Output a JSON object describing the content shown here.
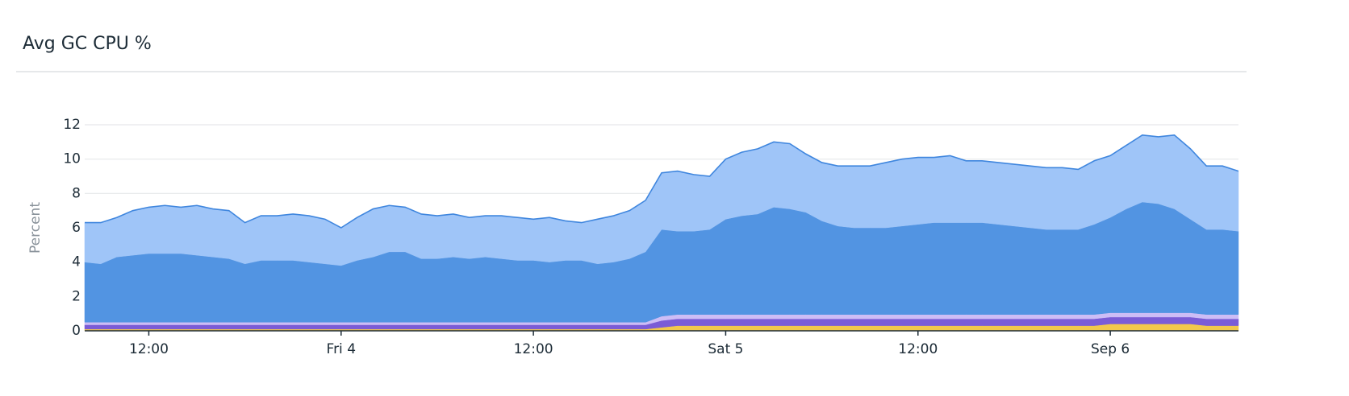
{
  "chart_data": {
    "type": "stacked_area",
    "title": "Avg GC CPU %",
    "y_label": "Percent",
    "x": [
      0,
      1,
      2,
      3,
      4,
      5,
      6,
      7,
      8,
      9,
      10,
      11,
      12,
      13,
      14,
      15,
      16,
      17,
      18,
      19,
      20,
      21,
      22,
      23,
      24,
      25,
      26,
      27,
      28,
      29,
      30,
      31,
      32,
      33,
      34,
      35,
      36,
      37,
      38,
      39,
      40,
      41,
      42,
      43,
      44,
      45,
      46,
      47,
      48,
      49,
      50,
      51,
      52,
      53,
      54,
      55,
      56,
      57,
      58,
      59,
      60,
      61,
      62,
      63,
      64,
      65,
      66,
      67,
      68,
      69,
      70,
      71,
      72
    ],
    "xlim": [
      0,
      72
    ],
    "xticks": [
      {
        "value": 4,
        "label": "12:00"
      },
      {
        "value": 16,
        "label": "Fri 4"
      },
      {
        "value": 28,
        "label": "12:00"
      },
      {
        "value": 40,
        "label": "Sat 5"
      },
      {
        "value": 52,
        "label": "12:00"
      },
      {
        "value": 64,
        "label": "Sep 6"
      }
    ],
    "ylim": [
      0,
      12
    ],
    "yticks": [
      0,
      2,
      4,
      6,
      8,
      10,
      12
    ],
    "grid": true,
    "series": [
      {
        "color": "#f2c84b",
        "values": [
          0.1,
          0.1,
          0.1,
          0.1,
          0.1,
          0.1,
          0.1,
          0.1,
          0.1,
          0.1,
          0.1,
          0.1,
          0.1,
          0.1,
          0.1,
          0.1,
          0.1,
          0.1,
          0.1,
          0.1,
          0.1,
          0.1,
          0.1,
          0.1,
          0.1,
          0.1,
          0.1,
          0.1,
          0.1,
          0.1,
          0.1,
          0.1,
          0.1,
          0.1,
          0.1,
          0.1,
          0.2,
          0.3,
          0.3,
          0.3,
          0.3,
          0.3,
          0.3,
          0.3,
          0.3,
          0.3,
          0.3,
          0.3,
          0.3,
          0.3,
          0.3,
          0.3,
          0.3,
          0.3,
          0.3,
          0.3,
          0.3,
          0.3,
          0.3,
          0.3,
          0.3,
          0.3,
          0.3,
          0.3,
          0.4,
          0.4,
          0.4,
          0.4,
          0.4,
          0.4,
          0.3,
          0.3,
          0.3
        ]
      },
      {
        "color": "#7b5cd6",
        "values": [
          0.25,
          0.25,
          0.25,
          0.25,
          0.25,
          0.25,
          0.25,
          0.25,
          0.25,
          0.25,
          0.25,
          0.25,
          0.25,
          0.25,
          0.25,
          0.25,
          0.25,
          0.25,
          0.25,
          0.25,
          0.25,
          0.25,
          0.25,
          0.25,
          0.25,
          0.25,
          0.25,
          0.25,
          0.25,
          0.25,
          0.25,
          0.25,
          0.25,
          0.25,
          0.25,
          0.25,
          0.4,
          0.4,
          0.4,
          0.4,
          0.4,
          0.4,
          0.4,
          0.4,
          0.4,
          0.4,
          0.4,
          0.4,
          0.4,
          0.4,
          0.4,
          0.4,
          0.4,
          0.4,
          0.4,
          0.4,
          0.4,
          0.4,
          0.4,
          0.4,
          0.4,
          0.4,
          0.4,
          0.4,
          0.4,
          0.4,
          0.4,
          0.4,
          0.4,
          0.4,
          0.4,
          0.4,
          0.4
        ]
      },
      {
        "color": "#cdbdf6",
        "values": [
          0.15,
          0.15,
          0.15,
          0.15,
          0.15,
          0.15,
          0.15,
          0.15,
          0.15,
          0.15,
          0.15,
          0.15,
          0.15,
          0.15,
          0.15,
          0.15,
          0.15,
          0.15,
          0.15,
          0.15,
          0.15,
          0.15,
          0.15,
          0.15,
          0.15,
          0.15,
          0.15,
          0.15,
          0.15,
          0.15,
          0.15,
          0.15,
          0.15,
          0.15,
          0.15,
          0.15,
          0.25,
          0.25,
          0.25,
          0.25,
          0.25,
          0.25,
          0.25,
          0.25,
          0.25,
          0.25,
          0.25,
          0.25,
          0.25,
          0.25,
          0.25,
          0.25,
          0.25,
          0.25,
          0.25,
          0.25,
          0.25,
          0.25,
          0.25,
          0.25,
          0.25,
          0.25,
          0.25,
          0.25,
          0.25,
          0.25,
          0.25,
          0.25,
          0.25,
          0.25,
          0.25,
          0.25,
          0.25
        ]
      },
      {
        "color": "#5294e2",
        "values": [
          3.5,
          3.4,
          3.8,
          3.9,
          4.0,
          4.0,
          4.0,
          3.9,
          3.8,
          3.7,
          3.4,
          3.6,
          3.6,
          3.6,
          3.5,
          3.4,
          3.3,
          3.6,
          3.8,
          4.1,
          4.1,
          3.7,
          3.7,
          3.8,
          3.7,
          3.8,
          3.7,
          3.6,
          3.6,
          3.5,
          3.6,
          3.6,
          3.4,
          3.5,
          3.7,
          4.1,
          5.05,
          4.85,
          4.85,
          4.95,
          5.55,
          5.75,
          5.85,
          6.25,
          6.15,
          5.95,
          5.45,
          5.15,
          5.05,
          5.05,
          5.05,
          5.15,
          5.25,
          5.35,
          5.35,
          5.35,
          5.35,
          5.25,
          5.15,
          5.05,
          4.95,
          4.95,
          4.95,
          5.25,
          5.55,
          6.05,
          6.45,
          6.35,
          6.05,
          5.45,
          4.95,
          4.95,
          4.85
        ]
      },
      {
        "color": "#9fc5f8",
        "values": [
          2.3,
          2.4,
          2.3,
          2.6,
          2.7,
          2.8,
          2.7,
          2.9,
          2.8,
          2.8,
          2.4,
          2.6,
          2.6,
          2.7,
          2.7,
          2.6,
          2.2,
          2.5,
          2.8,
          2.7,
          2.6,
          2.6,
          2.5,
          2.5,
          2.4,
          2.4,
          2.5,
          2.5,
          2.4,
          2.6,
          2.3,
          2.2,
          2.6,
          2.7,
          2.8,
          3.0,
          3.3,
          3.5,
          3.3,
          3.1,
          3.5,
          3.7,
          3.8,
          3.8,
          3.8,
          3.4,
          3.4,
          3.5,
          3.6,
          3.6,
          3.8,
          3.9,
          3.9,
          3.8,
          3.9,
          3.6,
          3.6,
          3.6,
          3.6,
          3.6,
          3.6,
          3.6,
          3.5,
          3.7,
          3.6,
          3.7,
          3.9,
          3.9,
          4.3,
          4.1,
          3.7,
          3.7,
          3.5
        ]
      }
    ]
  }
}
